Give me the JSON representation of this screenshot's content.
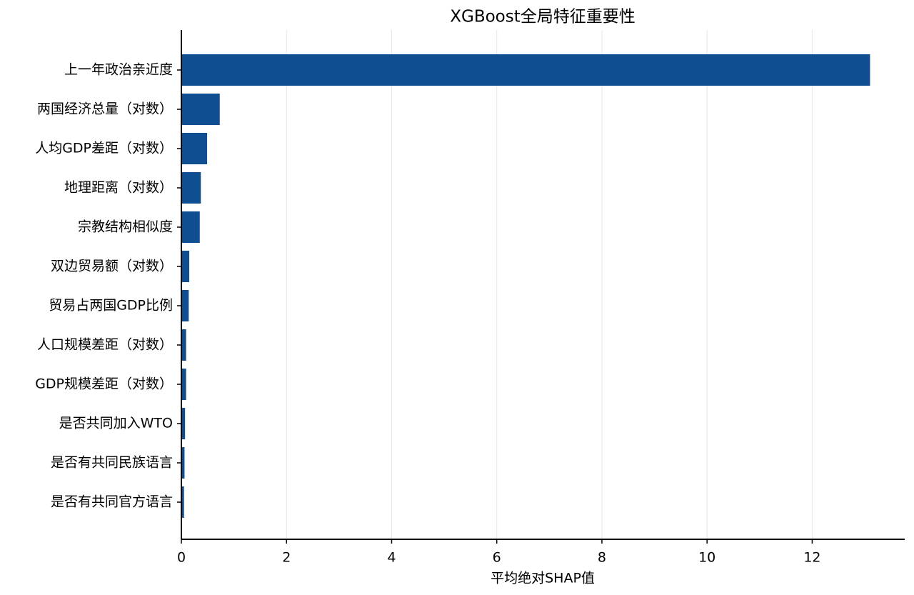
{
  "chart_data": {
    "type": "barh",
    "title": "XGBoost全局特征重要性",
    "x_label": "平均绝对SHAP值",
    "categories": [
      "上一年政治亲近度",
      "两国经济总量（对数）",
      "人均GDP差距（对数）",
      "地理距离（对数）",
      "宗教结构相似度",
      "双边贸易额（对数）",
      "贸易占两国GDP比例",
      "人口规模差距（对数）",
      "GDP规模差距（对数）",
      "是否共同加入WTO",
      "是否有共同民族语言",
      "是否有共同官方语言"
    ],
    "values": [
      13.1,
      0.73,
      0.49,
      0.37,
      0.35,
      0.15,
      0.14,
      0.09,
      0.09,
      0.07,
      0.06,
      0.05
    ],
    "color": "#0f4f91",
    "xlim": [
      0,
      13.76
    ],
    "xticks": [
      0,
      2,
      4,
      6,
      8,
      10,
      12
    ],
    "grid": true
  }
}
